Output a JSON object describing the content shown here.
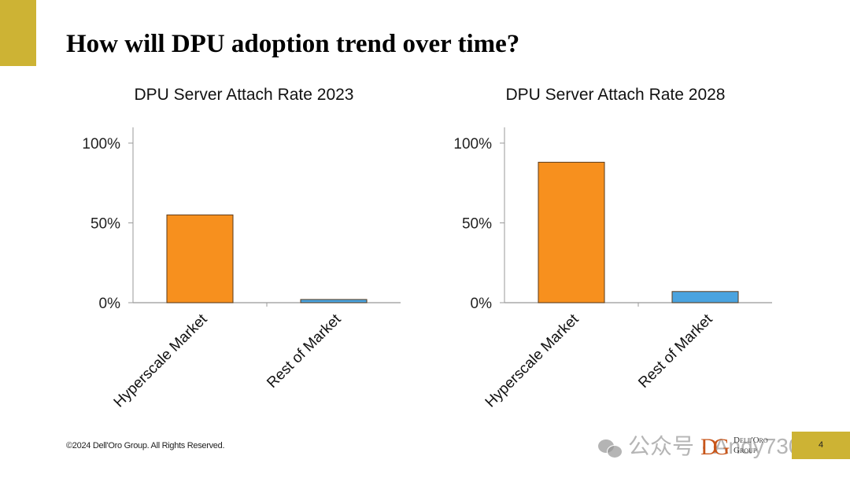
{
  "slide": {
    "title": "How will DPU adoption trend over time?",
    "footer": "©2024 Dell'Oro Group.  All Rights Reserved.",
    "logo_mark": "DG",
    "logo_line1": "Dell'Oro",
    "logo_line2": "Group",
    "page_number": "4",
    "watermark": "公众号 · Andy730",
    "accent_color": "#cdb334"
  },
  "chart_data": [
    {
      "type": "bar",
      "title": "DPU Server Attach Rate 2023",
      "categories": [
        "Hyperscale Market",
        "Rest of Market"
      ],
      "values": [
        55,
        2
      ],
      "colors": [
        "#f7901e",
        "#4aa3df"
      ],
      "ylim": [
        0,
        100
      ],
      "yticks": [
        0,
        50,
        100
      ],
      "ytick_labels": [
        "0%",
        "50%",
        "100%"
      ],
      "xlabel": "",
      "ylabel": "",
      "grid": false,
      "legend": "none"
    },
    {
      "type": "bar",
      "title": "DPU Server Attach Rate 2028",
      "categories": [
        "Hyperscale Market",
        "Rest of Market"
      ],
      "values": [
        88,
        7
      ],
      "colors": [
        "#f7901e",
        "#4aa3df"
      ],
      "ylim": [
        0,
        100
      ],
      "yticks": [
        0,
        50,
        100
      ],
      "ytick_labels": [
        "0%",
        "50%",
        "100%"
      ],
      "xlabel": "",
      "ylabel": "",
      "grid": false,
      "legend": "none"
    }
  ]
}
